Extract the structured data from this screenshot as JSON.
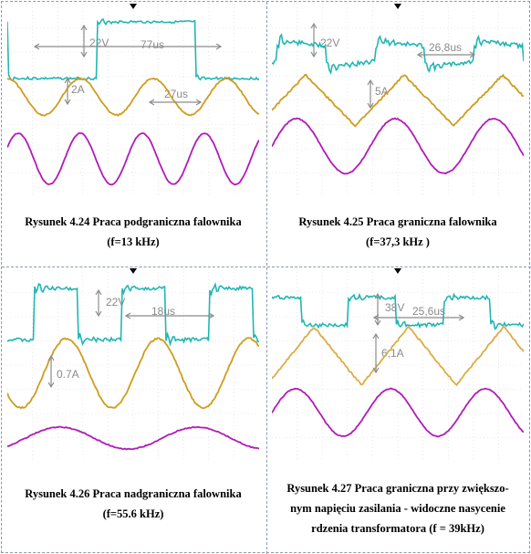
{
  "colors": {
    "voltage": "#21b6b4",
    "current": "#cf9c1e",
    "current_alt": "#dcac44",
    "third": "#b01bb8",
    "grid": "#d8d8d8",
    "annot": "#8c8c8c",
    "border": "#8a9ab0"
  },
  "figures": [
    {
      "id": "4.24",
      "caption_line1": "Rysunek 4.24  Praca podgraniczna falownika",
      "caption_line2": "(f=13 kHz)",
      "annotations": {
        "volt": "22V",
        "period": "77us",
        "amp": "2A",
        "half": "27us"
      }
    },
    {
      "id": "4.25",
      "caption_line1": "Rysunek 4.25  Praca graniczna falownika",
      "caption_line2": "(f=37,3 kHz )",
      "annotations": {
        "volt": "22V",
        "period": "26,8us",
        "amp": "5A"
      }
    },
    {
      "id": "4.26",
      "caption_line1": "Rysunek 4.26  Praca nadgraniczna falownika",
      "caption_line2": "(f=55.6 kHz)",
      "annotations": {
        "volt": "22V",
        "period": "18us",
        "amp": "0.7A"
      }
    },
    {
      "id": "4.27",
      "caption_line1": "Rysunek 4.27  Praca graniczna przy zwiększo-",
      "caption_line2": "nym napięciu zasilania - widoczne nasycenie",
      "caption_line3": "rdzenia transformatora (f = 39kHz)",
      "annotations": {
        "volt": "38V",
        "period": "25,6us",
        "amp": "6,1A"
      }
    }
  ]
}
